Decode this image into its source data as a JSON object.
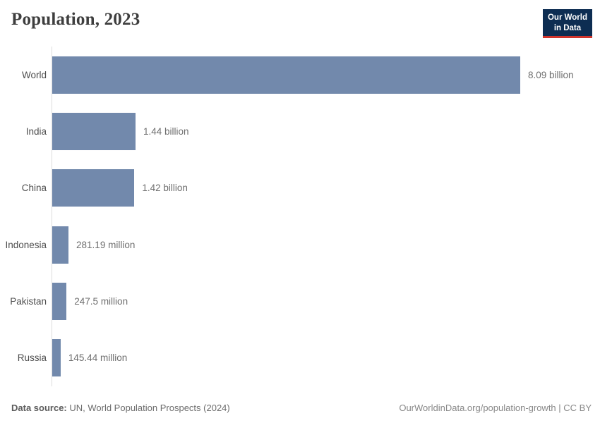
{
  "title": "Population, 2023",
  "logo": {
    "line1": "Our World",
    "line2": "in Data"
  },
  "footer": {
    "source_label": "Data source:",
    "source_text": " UN, World Population Prospects (2024)",
    "right_text": "OurWorldinData.org/population-growth | CC BY"
  },
  "colors": {
    "bar": "#7289ac",
    "logo_bg": "#0d2d52",
    "logo_stripe": "#d0342c",
    "axis": "#dcdcdc"
  },
  "chart_data": {
    "type": "bar",
    "orientation": "horizontal",
    "title": "Population, 2023",
    "xlabel": "",
    "ylabel": "",
    "categories": [
      "World",
      "India",
      "China",
      "Indonesia",
      "Pakistan",
      "Russia"
    ],
    "values_billions": [
      8.09,
      1.44,
      1.42,
      0.28119,
      0.2475,
      0.14544
    ],
    "value_labels": [
      "8.09 billion",
      "1.44 billion",
      "1.42 billion",
      "281.19 million",
      "247.5 million",
      "145.44 million"
    ],
    "xlim": [
      0,
      8.09
    ],
    "grid": false,
    "legend": false,
    "value_labels_position": "end-of-bar"
  }
}
